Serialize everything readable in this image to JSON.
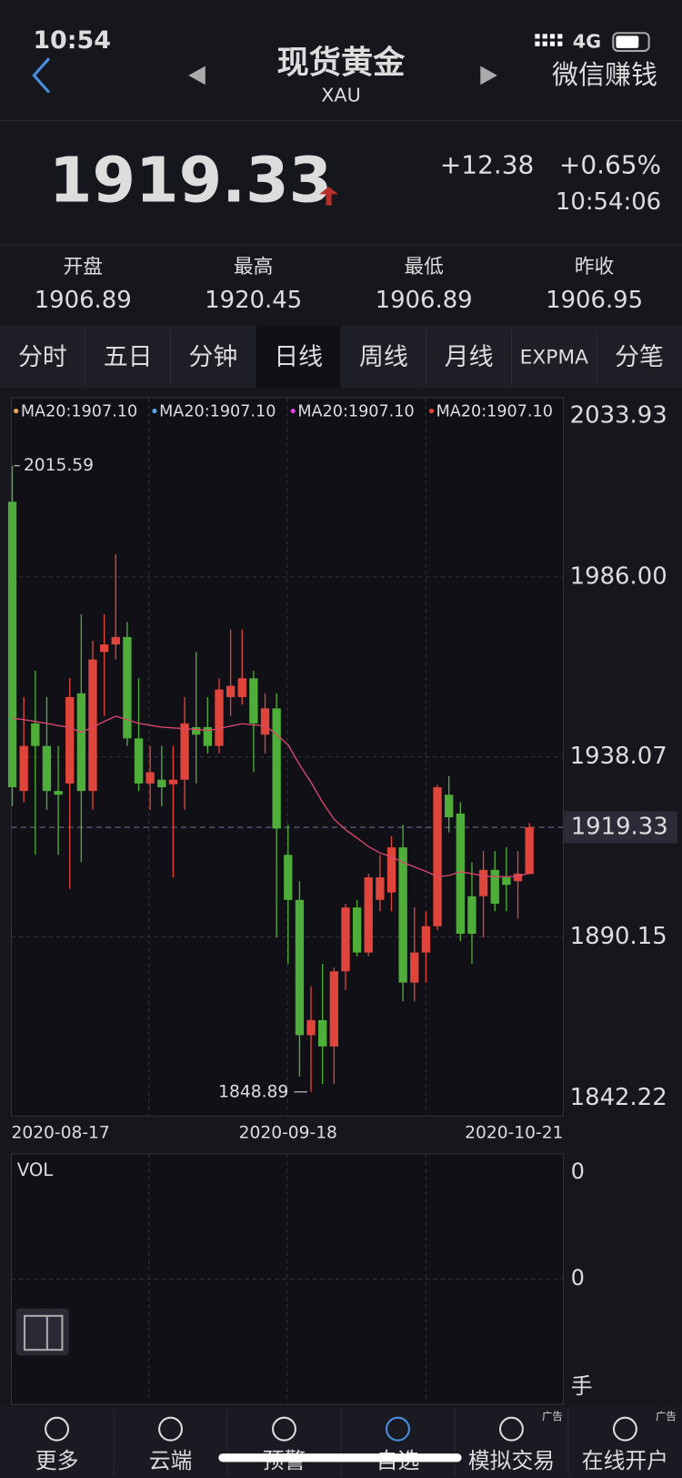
{
  "status_bar": {
    "time": "10:54",
    "network": "4G"
  },
  "header": {
    "title": "现货黄金",
    "code": "XAU",
    "action": "微信赚钱"
  },
  "quote": {
    "price": "1919.33",
    "change": "+12.38",
    "change_pct": "+0.65%",
    "time": "10:54:06"
  },
  "stats": [
    {
      "label": "开盘",
      "value": "1906.89"
    },
    {
      "label": "最高",
      "value": "1920.45"
    },
    {
      "label": "最低",
      "value": "1906.89"
    },
    {
      "label": "昨收",
      "value": "1906.95"
    }
  ],
  "tabs": [
    {
      "label": "分时",
      "selected": false
    },
    {
      "label": "五日",
      "selected": false
    },
    {
      "label": "分钟",
      "selected": false
    },
    {
      "label": "日线",
      "selected": true
    },
    {
      "label": "周线",
      "selected": false
    },
    {
      "label": "月线",
      "selected": false
    },
    {
      "label": "EXPMA",
      "selected": false
    },
    {
      "label": "分笔",
      "selected": false
    }
  ],
  "chart_data": {
    "type": "candlestick",
    "categories": [
      "2020-08-17",
      null,
      null,
      null,
      null,
      null,
      null,
      null,
      null,
      null,
      null,
      null,
      null,
      null,
      null,
      null,
      null,
      null,
      null,
      null,
      null,
      null,
      null,
      null,
      "2020-09-18",
      null,
      null,
      null,
      null,
      null,
      null,
      null,
      null,
      null,
      null,
      null,
      null,
      null,
      null,
      null,
      null,
      null,
      null,
      null,
      null,
      "2020-10-21"
    ],
    "open": [
      2006,
      1929,
      1947,
      1941,
      1929,
      1931,
      1955,
      1929,
      1966,
      1968,
      1970,
      1943,
      1931,
      1932,
      1930.8,
      1932,
      1946,
      1946,
      1941,
      1954,
      1954,
      1959,
      1944,
      1951,
      1912,
      1900,
      1864,
      1868,
      1861,
      1881,
      1898,
      1886,
      1900,
      1902,
      1914,
      1878,
      1886,
      1893,
      1928,
      1923,
      1901,
      1901,
      1908,
      1906,
      1905,
      1906.89
    ],
    "high": [
      2015.59,
      1954,
      1961,
      1954,
      1941,
      1959,
      1976,
      1969,
      1976,
      1992,
      1974,
      1959,
      1941,
      1941,
      1941,
      1954,
      1966,
      1954,
      1959,
      1972,
      1972,
      1961,
      1955,
      1955,
      1920,
      1905,
      1877,
      1883,
      1882,
      1899,
      1900,
      1907,
      1912,
      1917,
      1920,
      1898,
      1897,
      1930.6,
      1933,
      1926,
      1910,
      1913,
      1913,
      1914,
      1913,
      1920.45
    ],
    "low": [
      1925,
      1926,
      1912,
      1924,
      1912,
      1903,
      1910,
      1924,
      1949,
      1964,
      1941,
      1929,
      1924,
      1925,
      1906,
      1924,
      1931,
      1939,
      1939,
      1949,
      1952,
      1934,
      1939,
      1890,
      1883,
      1853,
      1848.89,
      1851,
      1851,
      1876,
      1885,
      1885,
      1897,
      1897,
      1873,
      1873,
      1878,
      1892,
      1918,
      1889,
      1883,
      1890,
      1897,
      1897,
      1895,
      1906.89
    ],
    "close": [
      1930,
      1941,
      1941,
      1929,
      1928,
      1954,
      1929,
      1964,
      1968,
      1970,
      1943,
      1931,
      1934,
      1930,
      1932,
      1947,
      1944,
      1941,
      1956,
      1957,
      1959,
      1947,
      1951,
      1919,
      1900,
      1864,
      1868,
      1861,
      1881,
      1898,
      1886,
      1906,
      1906,
      1914,
      1878,
      1886,
      1893,
      1930,
      1922,
      1891,
      1891,
      1908,
      1899,
      1904,
      1907,
      1919.33
    ],
    "series": [
      {
        "name": "MA20",
        "color": "#d9486f",
        "values": [
          1948.4,
          1948,
          1947.5,
          1947,
          1946.4,
          1945.9,
          1944.6,
          1946,
          1947.5,
          1948.9,
          1948,
          1947,
          1946.5,
          1946,
          1945.8,
          1945.6,
          1945.4,
          1945.1,
          1945.6,
          1946.3,
          1946.9,
          1946.6,
          1946.4,
          1944,
          1941.3,
          1936,
          1931.3,
          1926,
          1921.5,
          1918.7,
          1916.5,
          1914.2,
          1912.5,
          1911.5,
          1910,
          1908.8,
          1907.6,
          1906.2,
          1906.5,
          1907.5,
          1907,
          1906.4,
          1906.2,
          1906.2,
          1906.3,
          1907.1
        ]
      }
    ],
    "legend": [
      {
        "label": "MA20:1907.10",
        "color": "#f0a850"
      },
      {
        "label": "MA20:1907.10",
        "color": "#5aa8f0"
      },
      {
        "label": "MA20:1907.10",
        "color": "#e040e0"
      },
      {
        "label": "MA20:1907.10",
        "color": "#e04a3c"
      }
    ],
    "up_color": "#e0453c",
    "down_color": "#4fae3a",
    "ylim": [
      1842.22,
      2033.93
    ],
    "yticks": [
      1842.22,
      1890.15,
      1938.07,
      {
        "value": 1986,
        "label": "1986.00"
      },
      2033.93
    ],
    "current_price": 1919.33,
    "grid": true
  },
  "volume_panel": {
    "title": "VOL",
    "labels": [
      "0",
      "0"
    ],
    "unit": "手"
  },
  "nav": [
    {
      "label": "更多"
    },
    {
      "label": "云端"
    },
    {
      "label": "预警"
    },
    {
      "label": "自选"
    },
    {
      "label": "模拟交易",
      "badge": "广告"
    },
    {
      "label": "在线开户",
      "badge": "广告"
    }
  ]
}
